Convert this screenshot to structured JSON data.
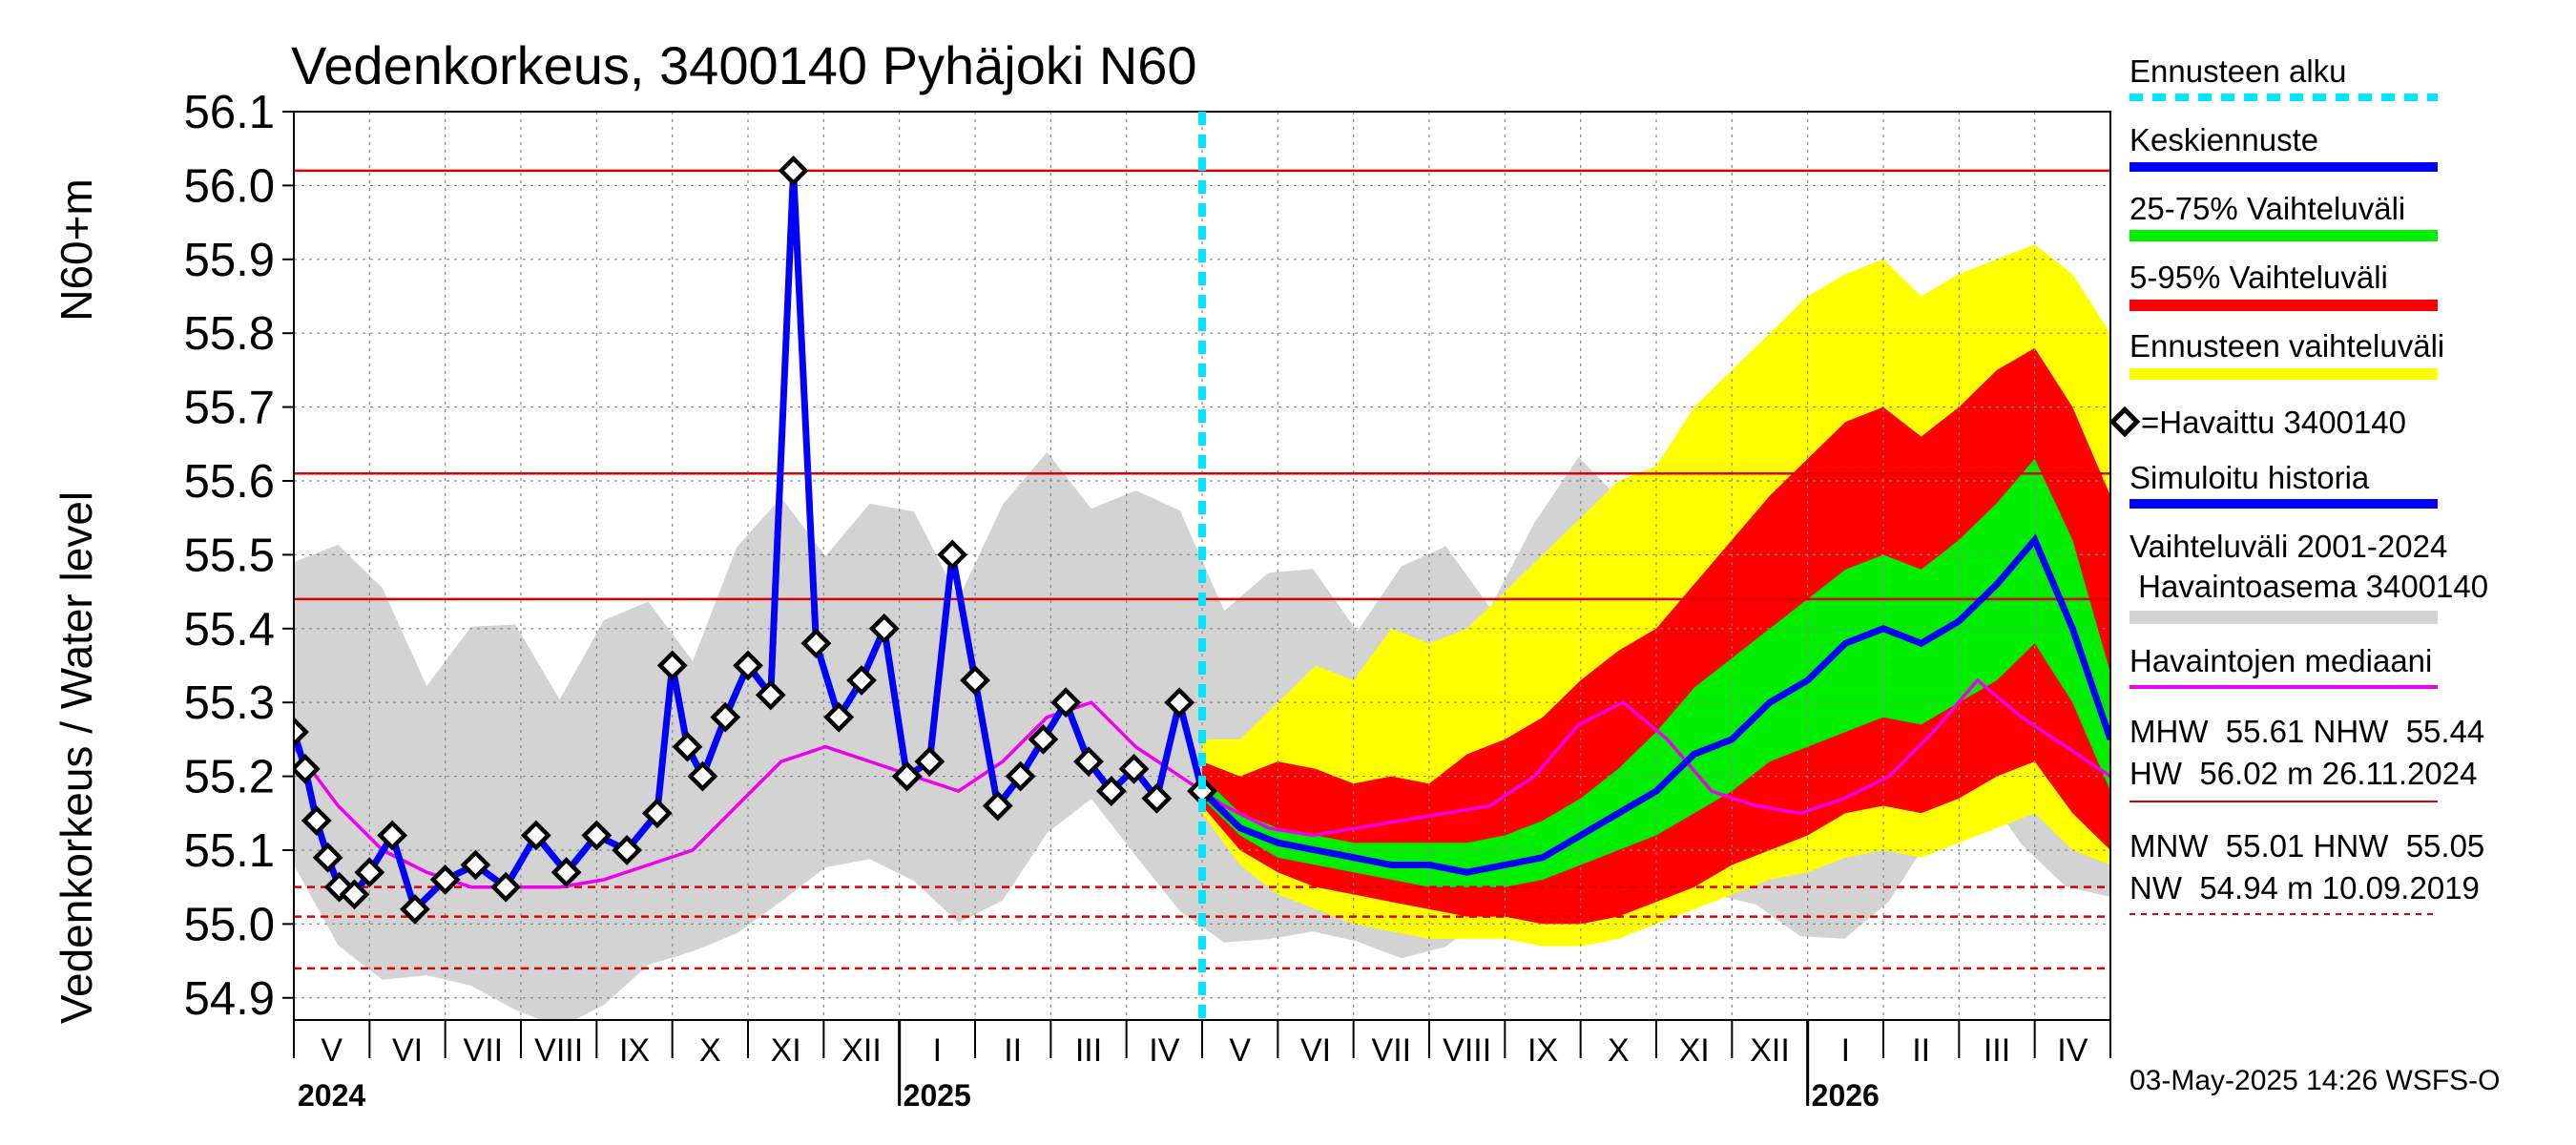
{
  "chart_data": {
    "type": "area",
    "title": "Vedenkorkeus, 3400140 Pyhäjoki N60",
    "ylabel_left": "Vedenkorkeus / Water level",
    "ylabel_right": "N60+m",
    "ylim": [
      54.87,
      56.1
    ],
    "yticks": [
      "54.9",
      "55.0",
      "55.1",
      "55.2",
      "55.3",
      "55.4",
      "55.5",
      "55.6",
      "55.7",
      "55.8",
      "55.9",
      "56.0",
      "56.1"
    ],
    "months": [
      "V",
      "VI",
      "VII",
      "VIII",
      "IX",
      "X",
      "XI",
      "XII",
      "I",
      "II",
      "III",
      "IV",
      "V",
      "VI",
      "VII",
      "VIII",
      "IX",
      "X",
      "XI",
      "XII",
      "I",
      "II",
      "III",
      "IV"
    ],
    "years": [
      "2024",
      "2025",
      "2026"
    ],
    "forecast_start_month_index": 12,
    "reference_lines": [
      {
        "label": "MHW",
        "value": 55.61,
        "style": "solid"
      },
      {
        "label": "NHW",
        "value": 55.44,
        "style": "solid"
      },
      {
        "label": "HW",
        "value": 56.02,
        "style": "solid"
      },
      {
        "label": "MNW",
        "value": 55.01,
        "style": "dashed"
      },
      {
        "label": "HNW",
        "value": 55.05,
        "style": "dashed"
      },
      {
        "label": "NW",
        "value": 54.94,
        "style": "dashed"
      }
    ],
    "observed_series_month": [
      0,
      0.15,
      0.3,
      0.45,
      0.6,
      0.8,
      1.0,
      1.3,
      1.6,
      2.0,
      2.4,
      2.8,
      3.2,
      3.6,
      4.0,
      4.4,
      4.8,
      5.0,
      5.2,
      5.4,
      5.7,
      6.0,
      6.3,
      6.6,
      6.9,
      7.2,
      7.5,
      7.8,
      8.1,
      8.4,
      8.7,
      9.0,
      9.3,
      9.6,
      9.9,
      10.2,
      10.5,
      10.8,
      11.1,
      11.4,
      11.7,
      12.0
    ],
    "observed_series": [
      55.26,
      55.21,
      55.14,
      55.09,
      55.05,
      55.04,
      55.07,
      55.12,
      55.02,
      55.06,
      55.08,
      55.05,
      55.12,
      55.07,
      55.12,
      55.1,
      55.15,
      55.35,
      55.24,
      55.2,
      55.28,
      55.35,
      55.31,
      56.02,
      55.38,
      55.28,
      55.33,
      55.4,
      55.2,
      55.22,
      55.5,
      55.33,
      55.16,
      55.2,
      55.25,
      55.3,
      55.22,
      55.18,
      55.21,
      55.17,
      55.3,
      55.18
    ],
    "forecast_month": [
      12,
      12.5,
      13,
      13.5,
      14,
      14.5,
      15,
      15.5,
      16,
      16.5,
      17,
      17.5,
      18,
      18.5,
      19,
      19.5,
      20,
      20.5,
      21,
      21.5,
      22,
      22.5,
      23,
      23.5,
      24
    ],
    "median_forecast": [
      55.18,
      55.13,
      55.11,
      55.1,
      55.09,
      55.08,
      55.08,
      55.07,
      55.08,
      55.09,
      55.12,
      55.15,
      55.18,
      55.23,
      55.25,
      55.3,
      55.33,
      55.38,
      55.4,
      55.38,
      55.41,
      55.46,
      55.52,
      55.4,
      55.25
    ],
    "p25_forecast": [
      55.17,
      55.12,
      55.09,
      55.08,
      55.07,
      55.06,
      55.05,
      55.05,
      55.05,
      55.06,
      55.08,
      55.1,
      55.12,
      55.15,
      55.18,
      55.22,
      55.24,
      55.26,
      55.28,
      55.27,
      55.3,
      55.33,
      55.38,
      55.3,
      55.18
    ],
    "p75_forecast": [
      55.2,
      55.15,
      55.13,
      55.12,
      55.11,
      55.11,
      55.11,
      55.11,
      55.12,
      55.14,
      55.17,
      55.21,
      55.26,
      55.32,
      55.36,
      55.4,
      55.44,
      55.48,
      55.5,
      55.48,
      55.52,
      55.57,
      55.63,
      55.52,
      55.34
    ],
    "p5_forecast": [
      55.16,
      55.1,
      55.07,
      55.05,
      55.04,
      55.03,
      55.02,
      55.01,
      55.01,
      55.0,
      55.0,
      55.01,
      55.03,
      55.05,
      55.08,
      55.1,
      55.12,
      55.15,
      55.16,
      55.15,
      55.17,
      55.2,
      55.22,
      55.15,
      55.1
    ],
    "p95_forecast": [
      55.22,
      55.2,
      55.22,
      55.21,
      55.19,
      55.2,
      55.19,
      55.23,
      55.25,
      55.28,
      55.33,
      55.37,
      55.4,
      55.46,
      55.52,
      55.58,
      55.63,
      55.68,
      55.7,
      55.66,
      55.7,
      55.75,
      55.78,
      55.7,
      55.58
    ],
    "ens_min_forecast": [
      55.15,
      55.08,
      55.04,
      55.02,
      55.0,
      54.99,
      54.98,
      54.98,
      54.98,
      54.97,
      54.97,
      54.98,
      55.0,
      55.02,
      55.04,
      55.06,
      55.07,
      55.09,
      55.1,
      55.09,
      55.11,
      55.13,
      55.15,
      55.1,
      55.08
    ],
    "ens_max_forecast": [
      55.25,
      55.25,
      55.3,
      55.35,
      55.33,
      55.4,
      55.38,
      55.4,
      55.45,
      55.5,
      55.55,
      55.6,
      55.62,
      55.7,
      55.75,
      55.8,
      55.85,
      55.88,
      55.9,
      55.85,
      55.88,
      55.9,
      55.92,
      55.88,
      55.8
    ],
    "median_hist": [
      55.24,
      55.16,
      55.1,
      55.07,
      55.05,
      55.05,
      55.05,
      55.06,
      55.08,
      55.1,
      55.16,
      55.22,
      55.24,
      55.22,
      55.2,
      55.18,
      55.22,
      55.28,
      55.3,
      55.24,
      55.2,
      55.16,
      55.13,
      55.12,
      55.13,
      55.14,
      55.15,
      55.16,
      55.2,
      55.27,
      55.3,
      55.25,
      55.18,
      55.16,
      55.15,
      55.17,
      55.2,
      55.26,
      55.33,
      55.28,
      55.24,
      55.2
    ]
  },
  "legend": {
    "ennusteen_alku": "Ennusteen alku",
    "keskiennuste": "Keskiennuste",
    "vaihteluvali_25_75": "25-75% Vaihteluväli",
    "vaihteluvali_5_95": "5-95% Vaihteluväli",
    "ennusteen_vaihteluvali": "Ennusteen vaihteluväli",
    "havaittu": "=Havaittu 3400140",
    "simuloitu": "Simuloitu historia",
    "vaihteluvali_hist_1": "Vaihteluväli 2001-2024",
    "vaihteluvali_hist_2": " Havaintoasema 3400140",
    "mediaani": "Havaintojen mediaani"
  },
  "stats": {
    "line1": "MHW  55.61 NHW  55.44",
    "line2": "HW  56.02 m 26.11.2024",
    "line3": "MNW  55.01 HNW  55.05",
    "line4": "NW  54.94 m 10.09.2019"
  },
  "colors": {
    "forecast_start": "#00e5ff",
    "mean": "#0000ff",
    "band_25_75": "#00ee00",
    "band_5_95": "#ff0000",
    "band_ens": "#ffff00",
    "history": "#d3d3d3",
    "median": "#ee00ee",
    "ref": "#dd0000"
  },
  "footer": "03-May-2025 14:26 WSFS-O"
}
